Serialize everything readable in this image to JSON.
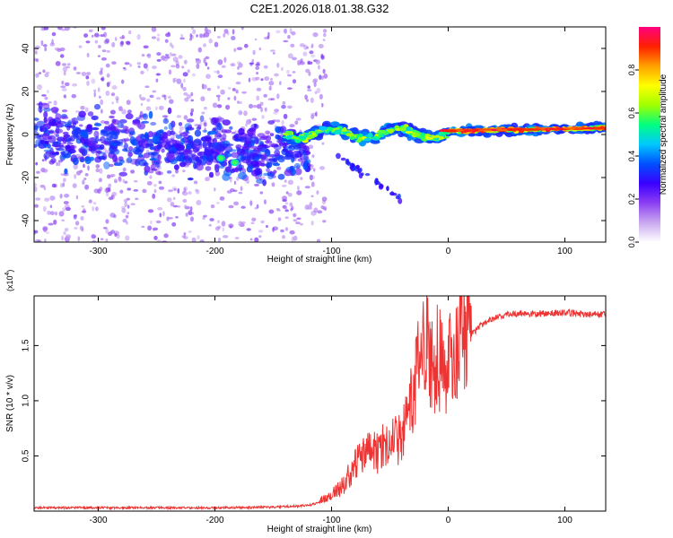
{
  "title": "C2E1.2026.018.01.38.G32",
  "chart_data": [
    {
      "type": "heatmap",
      "xlabel": "Height of straight line (km)",
      "ylabel": "Frequency (Hz)",
      "xlim": [
        -355,
        135
      ],
      "ylim": [
        -50,
        50
      ],
      "xticks": [
        -300,
        -200,
        -100,
        0,
        100
      ],
      "yticks": [
        -40,
        -20,
        0,
        20,
        40
      ],
      "grid": false,
      "colorbar": {
        "label": "Normalized spectral amplitude",
        "range": [
          0,
          1
        ],
        "ticks": [
          0.0,
          0.2,
          0.4,
          0.6,
          0.8
        ],
        "tick_labels": [
          "0.0",
          "0.2",
          "0.4",
          "0.6",
          "0.8"
        ],
        "colors": [
          "#ffffff",
          "#c9a8f0",
          "#8c3ff2",
          "#3a00ff",
          "#0050ff",
          "#00c8ff",
          "#00ff80",
          "#a0ff00",
          "#ffff00",
          "#ffa000",
          "#ff2000",
          "#ff0080"
        ]
      },
      "features": [
        {
          "name": "diffuse scatter",
          "x_range": [
            -355,
            -105
          ],
          "y_range": [
            -50,
            50
          ],
          "amplitude": 0.15
        },
        {
          "name": "concentrated band",
          "x_range": [
            -355,
            -120
          ],
          "y_center": [
            0,
            -18
          ],
          "amplitude": 0.3
        },
        {
          "name": "hot spots",
          "points": [
            [
              -195,
              -11
            ],
            [
              -183,
              -13
            ]
          ],
          "amplitude": 0.45
        },
        {
          "name": "main track",
          "x_range": [
            -140,
            135
          ],
          "y_center": [
            0,
            3
          ],
          "amplitude": [
            0.35,
            0.95
          ]
        },
        {
          "name": "faint branch",
          "x_range": [
            -95,
            -40
          ],
          "y_center": [
            -10,
            -30
          ],
          "amplitude": 0.2
        }
      ]
    },
    {
      "type": "line",
      "xlabel": "Height of straight line (km)",
      "ylabel": "SNR (10 * v/v)",
      "y_multiplier": "(x10",
      "y_multiplier_exp": "4",
      "y_multiplier_close": ")",
      "xlim": [
        -355,
        135
      ],
      "ylim": [
        0,
        1.95
      ],
      "xticks": [
        -300,
        -200,
        -100,
        0,
        100
      ],
      "yticks": [
        0.5,
        1.0,
        1.5
      ],
      "ytick_labels": [
        "0.5",
        "1.0",
        "1.5"
      ],
      "grid": false,
      "series": [
        {
          "color": "#ee3333",
          "x": [
            -355,
            -300,
            -250,
            -200,
            -150,
            -120,
            -110,
            -100,
            -90,
            -80,
            -70,
            -60,
            -50,
            -45,
            -40,
            -35,
            -30,
            -25,
            -22,
            -20,
            -15,
            -10,
            -5,
            0,
            10,
            20,
            30,
            40,
            50,
            60,
            80,
            100,
            120,
            135
          ],
          "y": [
            0.03,
            0.03,
            0.03,
            0.03,
            0.035,
            0.05,
            0.08,
            0.12,
            0.2,
            0.35,
            0.45,
            0.45,
            0.6,
            0.55,
            0.55,
            0.7,
            0.9,
            1.1,
            1.2,
            1.3,
            1.2,
            1.2,
            1.15,
            1.1,
            1.4,
            1.6,
            1.7,
            1.75,
            1.78,
            1.79,
            1.79,
            1.8,
            1.78,
            1.78
          ]
        }
      ]
    }
  ]
}
